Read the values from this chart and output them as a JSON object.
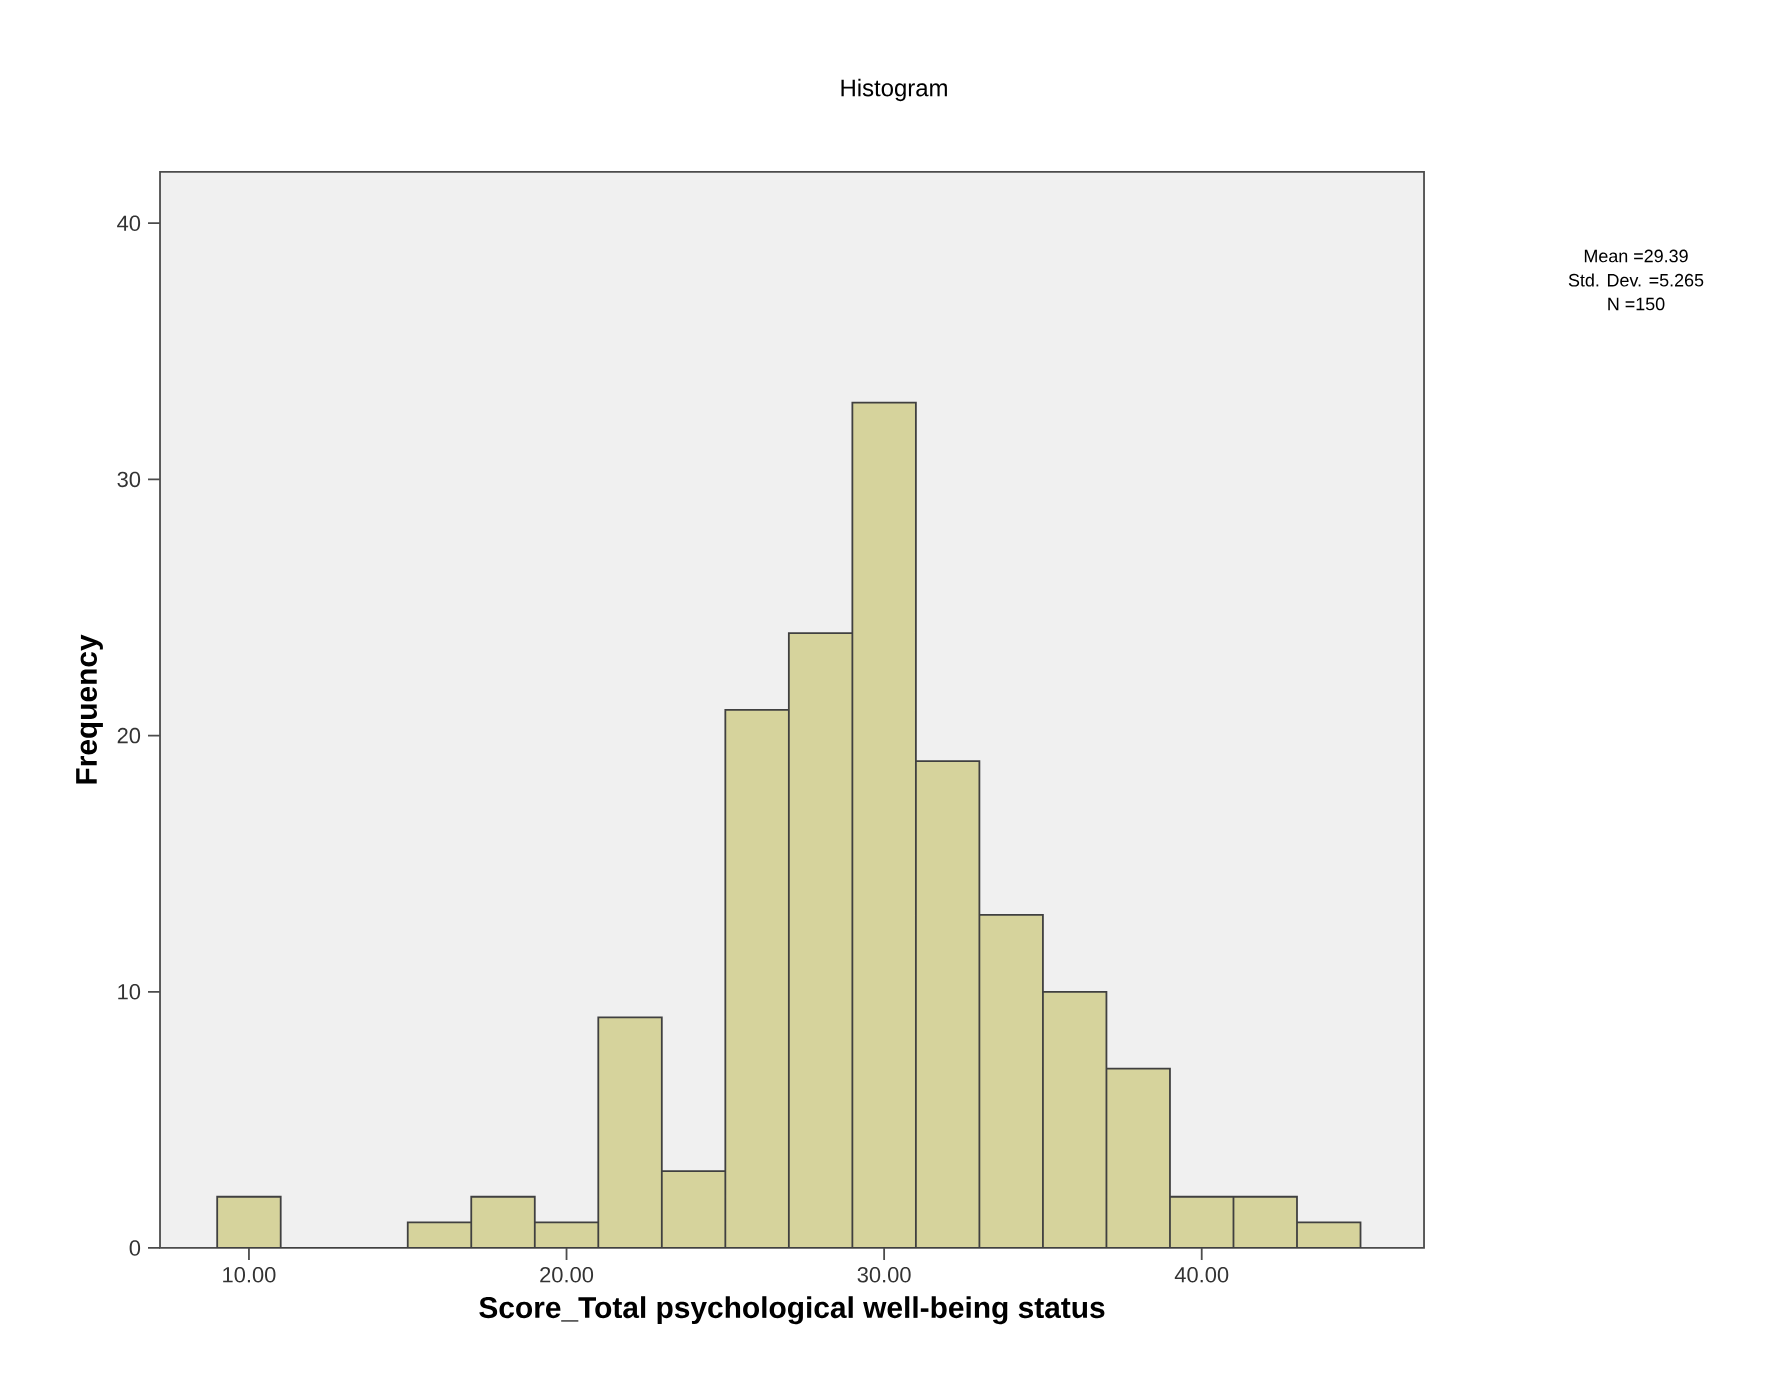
{
  "chart_data": {
    "type": "histogram",
    "title": "Histogram",
    "xlabel": "Score_Total psychological well-being status",
    "ylabel": "Frequency",
    "bins": [
      9,
      11,
      13,
      15,
      17,
      19,
      21,
      23,
      25,
      27,
      29,
      31,
      33,
      35,
      37,
      39,
      41,
      43,
      45
    ],
    "values": [
      2,
      0,
      0,
      1,
      2,
      1,
      9,
      3,
      21,
      24,
      33,
      19,
      13,
      10,
      7,
      2,
      2,
      1
    ],
    "color": "#d6d39c",
    "xlim": [
      7.2,
      47
    ],
    "ylim": [
      0,
      42
    ],
    "xticks": [
      {
        "value": 10,
        "label": "10.00"
      },
      {
        "value": 20,
        "label": "20.00"
      },
      {
        "value": 30,
        "label": "30.00"
      },
      {
        "value": 40,
        "label": "40.00"
      }
    ],
    "yticks": [
      0,
      10,
      20,
      30,
      40
    ],
    "annotations": [
      "Mean =29.39",
      "Std. Dev. =5.265",
      "N =150"
    ],
    "grid": false
  }
}
